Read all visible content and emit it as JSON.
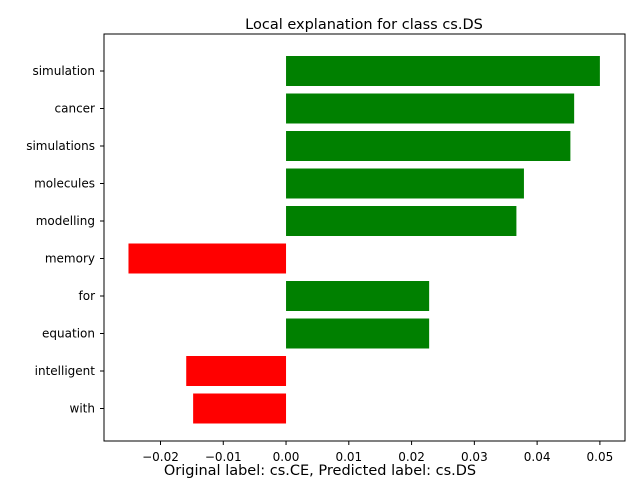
{
  "chart_data": {
    "type": "bar",
    "orientation": "horizontal",
    "title": "Local explanation for class cs.DS",
    "caption": "Original label: cs.CE, Predicted label: cs.DS",
    "categories": [
      "simulation",
      "cancer",
      "simulations",
      "molecules",
      "modelling",
      "memory",
      "for",
      "equation",
      "intelligent",
      "with"
    ],
    "values": [
      0.05,
      0.0459,
      0.0453,
      0.0379,
      0.0367,
      -0.0251,
      0.0228,
      0.0228,
      -0.0159,
      -0.0148
    ],
    "xlim": [
      -0.029,
      0.054
    ],
    "xticks": [
      -0.02,
      -0.01,
      0.0,
      0.01,
      0.02,
      0.03,
      0.04,
      0.05
    ],
    "xtick_labels": [
      "−0.02",
      "−0.01",
      "0.00",
      "0.01",
      "0.02",
      "0.03",
      "0.04",
      "0.05"
    ],
    "colors": {
      "positive": "#008000",
      "negative": "#ff0000"
    },
    "grid": false,
    "legend": "none"
  }
}
